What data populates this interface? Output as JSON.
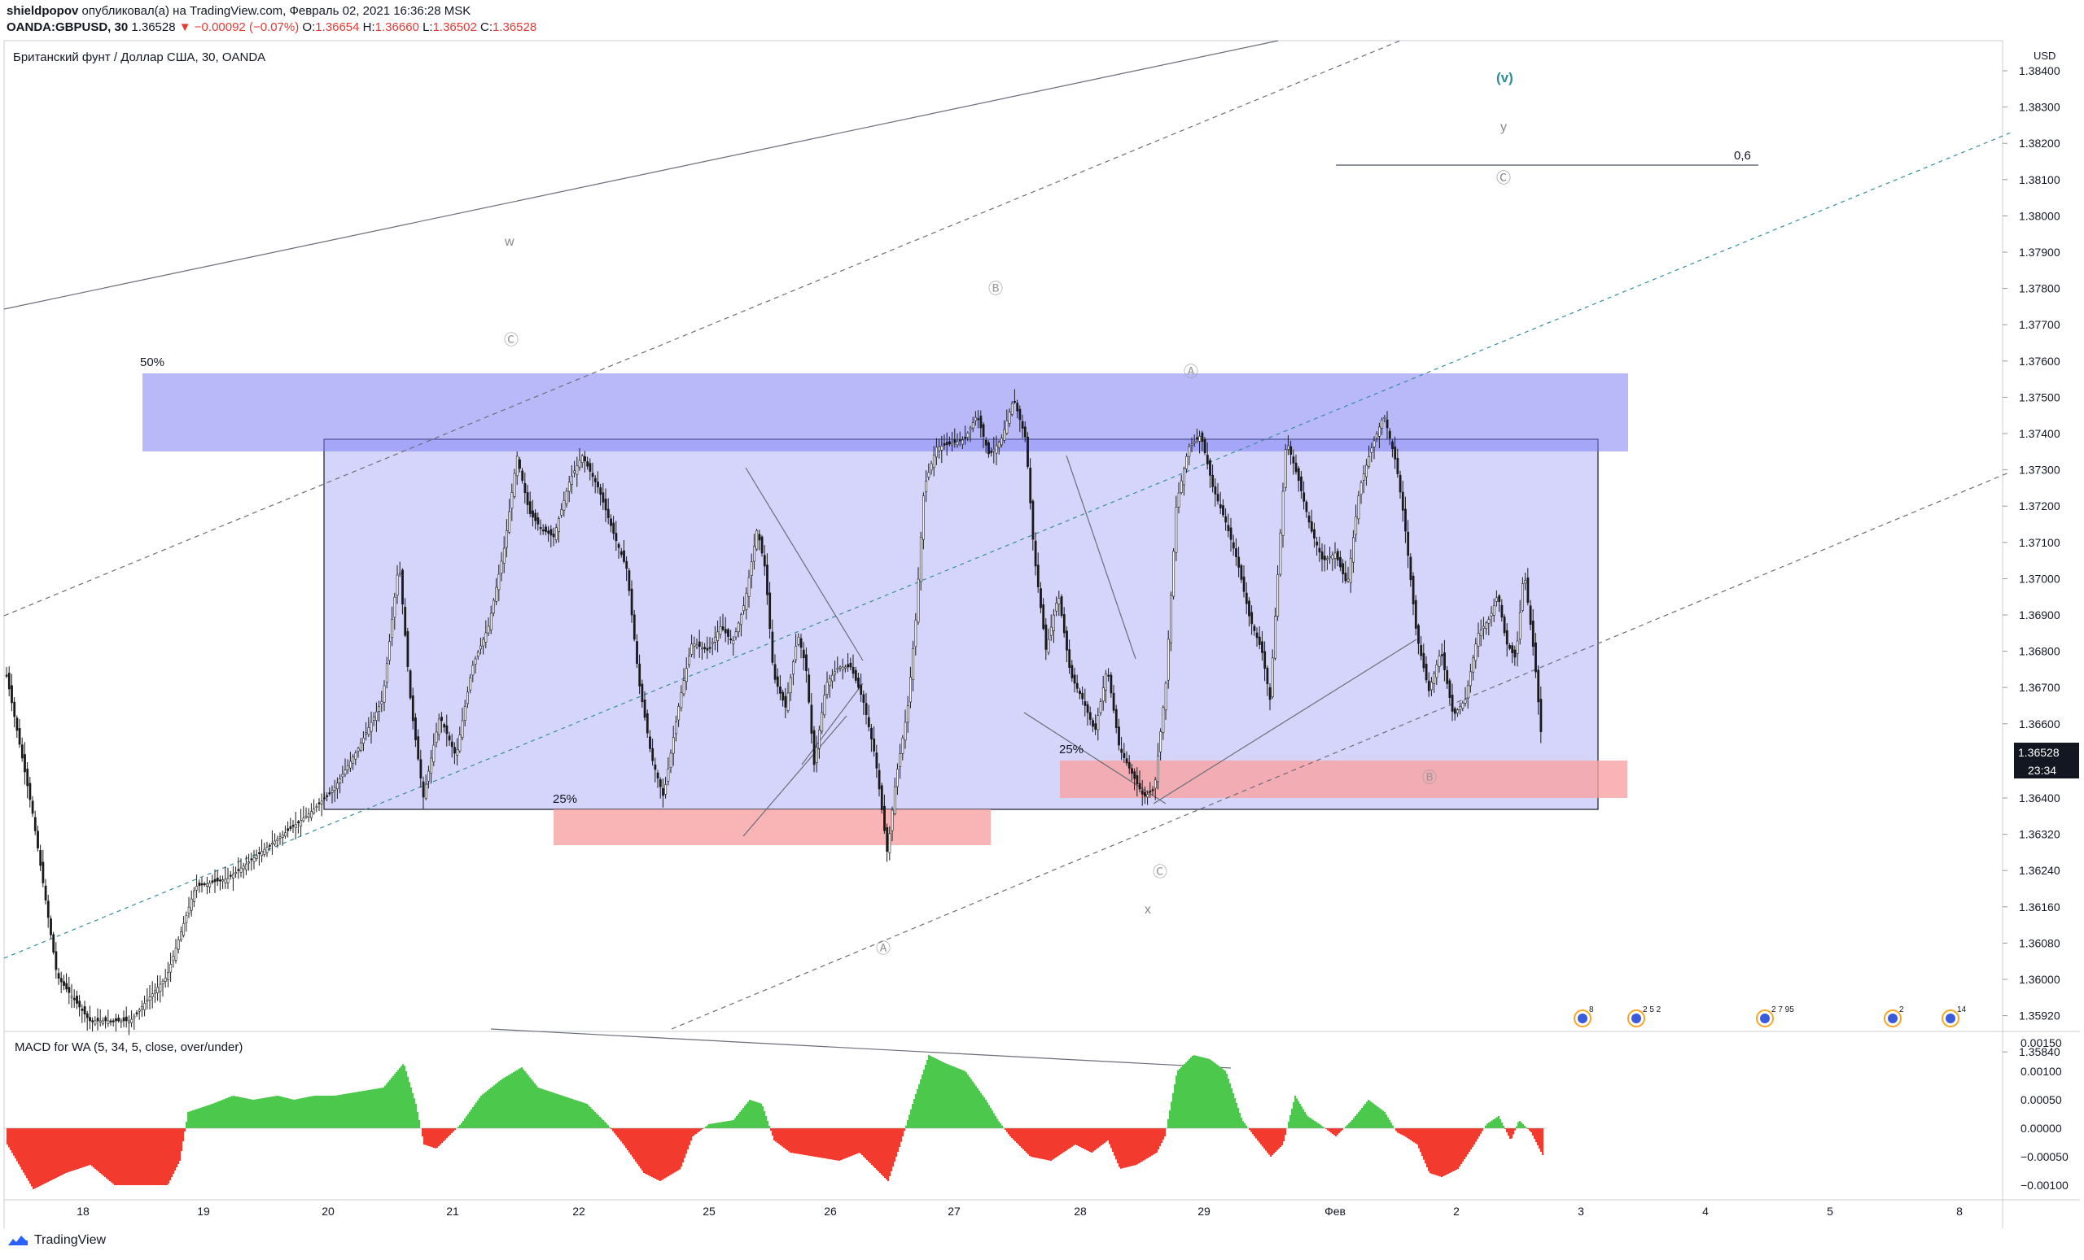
{
  "header": {
    "author": "shieldpopov",
    "published_text": "опубликовал(а) на TradingView.com, Февраль 02, 2021 16:36:28 MSK",
    "symbol": "OANDA:GBPUSD, 30",
    "last": "1.36528",
    "change": "−0.00092 (−0.07%)",
    "o_label": "O:",
    "o_value": "1.36654",
    "h_label": "H:",
    "h_value": "1.36660",
    "l_label": "L:",
    "l_value": "1.36502",
    "c_label": "C:",
    "c_value": "1.36528"
  },
  "chart_data": {
    "type": "candlestick",
    "title": "Британский фунт / Доллар США, 30, OANDA",
    "currency": "USD",
    "y_ticks": [
      "1.38400",
      "1.38300",
      "1.38200",
      "1.38100",
      "1.38000",
      "1.37900",
      "1.37800",
      "1.37700",
      "1.37600",
      "1.37500",
      "1.37400",
      "1.37300",
      "1.37200",
      "1.37100",
      "1.37000",
      "1.36900",
      "1.36800",
      "1.36700",
      "1.36600",
      "1.36400",
      "1.36320",
      "1.36240",
      "1.36160",
      "1.36080",
      "1.36000",
      "1.35920",
      "1.35840"
    ],
    "x_ticks": [
      "18",
      "19",
      "20",
      "21",
      "22",
      "25",
      "26",
      "27",
      "28",
      "29",
      "Фев",
      "2",
      "3",
      "4",
      "5",
      "8"
    ],
    "last_price_label": "1.36528",
    "countdown": "23:34",
    "annotations": {
      "fib_top": "50%",
      "fib_left": "25%",
      "fib_right": "25%",
      "fib_line": "0,6",
      "wave_v": "(v)",
      "wave_y": "y",
      "wave_w": "w",
      "wave_x": "x",
      "circ_c": "Ⓒ",
      "circ_b": "Ⓑ",
      "circ_a": "Ⓐ"
    },
    "colors": {
      "up_hist": "#4cc94c",
      "down_hist": "#f23b2e",
      "zone_blue": "#7f7ff5",
      "zone_red": "#f7a1a3",
      "grey_line": "#6a6d78",
      "teal_line": "#2f8f9a"
    }
  },
  "macd": {
    "label": "MACD for WA (5, 34, 5, close, over/under)",
    "y_ticks": [
      "0.00150",
      "0.00100",
      "0.00050",
      "0.00000",
      "−0.00050",
      "−0.00100"
    ]
  },
  "footer": {
    "brand": "TradingView"
  },
  "events": [
    "8",
    "2 5 2",
    "2 7 95",
    "2",
    "14"
  ]
}
